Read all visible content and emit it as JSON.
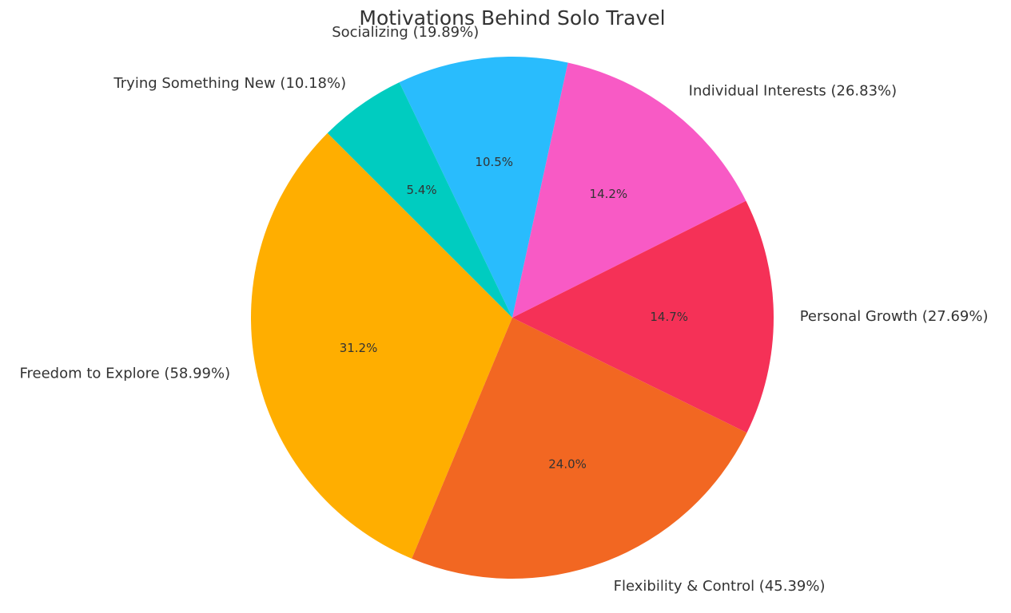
{
  "chart_data": {
    "type": "pie",
    "title": "Motivations Behind Solo Travel",
    "start_angle_deg": 135,
    "direction": "counterclockwise",
    "slices": [
      {
        "label": "Freedom to Explore (58.99%)",
        "value": 58.99,
        "percent_label": "31.2%",
        "color": "#FFAE00"
      },
      {
        "label": "Flexibility & Control (45.39%)",
        "value": 45.39,
        "percent_label": "24.0%",
        "color": "#F26722"
      },
      {
        "label": "Personal Growth (27.69%)",
        "value": 27.69,
        "percent_label": "14.7%",
        "color": "#F53157"
      },
      {
        "label": "Individual Interests (26.83%)",
        "value": 26.83,
        "percent_label": "14.2%",
        "color": "#F85AC5"
      },
      {
        "label": "Socializing (19.89%)",
        "value": 19.89,
        "percent_label": "10.5%",
        "color": "#29BCFD"
      },
      {
        "label": "Trying Something New (10.18%)",
        "value": 10.18,
        "percent_label": "5.4%",
        "color": "#00CCC0"
      }
    ]
  }
}
